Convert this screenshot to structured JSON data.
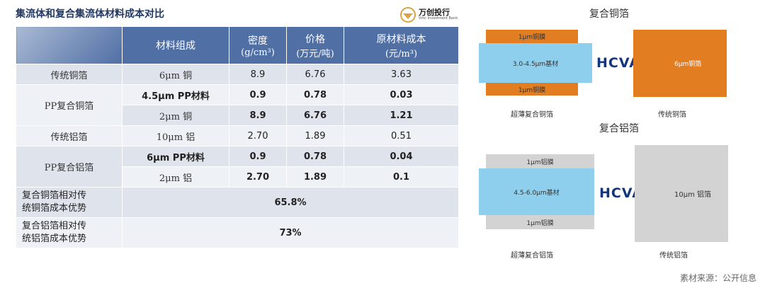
{
  "header": {
    "title": "集流体和复合集流体材料成本对比",
    "logo_name": "万创投行",
    "logo_sub": "Vmc Investment Bank"
  },
  "table": {
    "columns": [
      "材料组成",
      "密度",
      "(g/cm³)",
      "价格",
      "(万元/吨)",
      "原材料成本",
      "(元/m³)"
    ],
    "rows": [
      {
        "group": "传统铜箔",
        "material": "6μm 铜",
        "density": "8.9",
        "price": "6.76",
        "cost": "3.63"
      },
      {
        "group": "PP复合铜箔",
        "material": "4.5μm PP材料",
        "density": "0.9",
        "price": "0.78",
        "cost": "0.03"
      },
      {
        "material": "2μm 铜",
        "density": "8.9",
        "price": "6.76",
        "cost": "1.21"
      },
      {
        "group": "传统铝箔",
        "material": "10μm 铝",
        "density": "2.70",
        "price": "1.89",
        "cost": "0.51"
      },
      {
        "group": "PP复合铝箔",
        "material": "6μm PP材料",
        "density": "0.9",
        "price": "0.78",
        "cost": "0.04"
      },
      {
        "material": "2μm 铝",
        "density": "2.70",
        "price": "1.89",
        "cost": "0.1"
      }
    ],
    "summary": [
      {
        "label_line1": "复合铜箔相对传",
        "label_line2": "统铜箔成本优势",
        "value": "65.8%"
      },
      {
        "label_line1": "复合铝箔相对传",
        "label_line2": "统铝箔成本优势",
        "value": "73%"
      }
    ]
  },
  "diagram_copper": {
    "title": "复合铜箔",
    "top_layer": "1μm铜膜",
    "base": "3.0-4.5μm基材",
    "bottom_layer": "1μm铜膜",
    "brand": "HCVAC",
    "traditional": "6μm铜箔",
    "caption_left": "超薄复合铜箔",
    "caption_right": "传统铜箔",
    "colors": {
      "copper": "#e27d22",
      "base": "#8fcfee"
    }
  },
  "diagram_aluminum": {
    "title": "复合铝箔",
    "top_layer": "1μm铝膜",
    "base": "4.5-6.0μm基材",
    "bottom_layer": "1μm铝膜",
    "brand": "HCVAC",
    "traditional": "10μm 铝箔",
    "caption_left": "超薄复合铝箔",
    "caption_right": "传统铝箔",
    "colors": {
      "aluminum": "#d3d3d3",
      "base": "#8fcfee"
    }
  },
  "footer": {
    "source": "素材来源：公开信息"
  }
}
